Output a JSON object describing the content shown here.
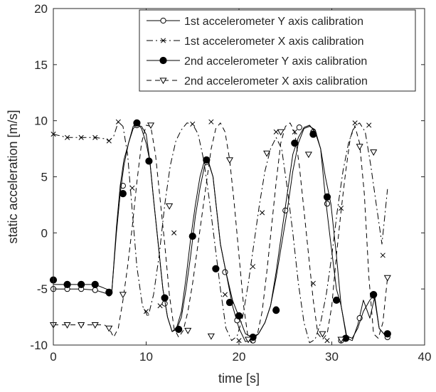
{
  "chart_data": {
    "type": "line",
    "xlabel": "time [s]",
    "ylabel": "static acceleration [m/s]",
    "xlim": [
      0,
      40
    ],
    "ylim": [
      -10,
      20
    ],
    "x_ticks": [
      0,
      10,
      20,
      30,
      40
    ],
    "y_ticks": [
      -10,
      -5,
      0,
      5,
      10,
      15,
      20
    ],
    "grid": false,
    "legend_position": "top-right",
    "series": [
      {
        "name": "1st accelerometer Y axis calibration",
        "line_style": "solid",
        "marker": "open-circle",
        "color": "#000000",
        "x": [
          0,
          1.5,
          3,
          4.5,
          5.7,
          6.3,
          6.8,
          7.2,
          7.6,
          8.1,
          8.6,
          9.0,
          9.5,
          10.0,
          10.4,
          10.8,
          11.3,
          11.8,
          12.3,
          12.8,
          13.3,
          13.8,
          14.3,
          14.8,
          15.3,
          15.8,
          16.3,
          16.7,
          17.2,
          17.6,
          18.0,
          18.6,
          19.3,
          20.0,
          20.7,
          21.4,
          22.1,
          22.8,
          23.4,
          24.0,
          24.6,
          25.2,
          25.8,
          26.4,
          27.0,
          27.6,
          28.2,
          28.8,
          29.3,
          29.9,
          30.5,
          31.0,
          31.6,
          32.2,
          32.8,
          33.4,
          34.1,
          34.6,
          35.1,
          35.6,
          36.2
        ],
        "y": [
          -5.0,
          -5.0,
          -5.0,
          -5.1,
          -5.4,
          -5.3,
          0.5,
          4.2,
          6.5,
          8.0,
          9.3,
          9.6,
          9.5,
          8.8,
          6.4,
          3.0,
          -1.0,
          -5.0,
          -7.5,
          -8.8,
          -8.6,
          -7.5,
          -5.0,
          -2.0,
          1.5,
          4.0,
          6.0,
          6.3,
          5.0,
          2.0,
          -1.0,
          -3.5,
          -6.5,
          -8.5,
          -9.7,
          -9.5,
          -9.0,
          -8.0,
          -6.5,
          -4.0,
          -1.0,
          2.0,
          5.5,
          8.0,
          9.3,
          9.5,
          9.2,
          7.5,
          5.0,
          2.6,
          -2.0,
          -6.5,
          -9.4,
          -9.6,
          -8.2,
          -6.0,
          -7.6,
          -5.8,
          -8.5,
          -9.0,
          -9.2
        ],
        "marker_x": [
          0,
          1.5,
          3,
          4.5,
          6,
          7.5,
          9,
          10.3,
          12,
          13.5,
          16.5,
          18.5,
          19.8,
          21.5,
          24,
          25,
          26.5,
          28,
          29.5,
          31,
          33,
          34.5,
          36
        ],
        "marker_y": [
          -5.0,
          -5.0,
          -5.0,
          -5.1,
          -5.4,
          4.2,
          9.6,
          6.4,
          -6.3,
          -8.6,
          6.3,
          -3.5,
          -7.8,
          -9.6,
          -6.8,
          2.0,
          9.4,
          9.0,
          2.6,
          -9.6,
          -7.6,
          -5.6,
          -9.3
        ]
      },
      {
        "name": "1st accelerometer X axis calibration",
        "line_style": "dash-dot",
        "marker": "x",
        "color": "#000000",
        "x": [
          0,
          1.5,
          3,
          4.5,
          5.5,
          6.0,
          6.5,
          7.0,
          7.5,
          8.0,
          8.5,
          9.0,
          9.6,
          10.2,
          10.8,
          11.4,
          12.0,
          12.6,
          13.2,
          13.8,
          14.4,
          15.0,
          15.6,
          16.2,
          16.8,
          17.4,
          18.0,
          18.6,
          19.2,
          19.8,
          20.4,
          21.0,
          21.6,
          22.2,
          22.8,
          23.4,
          24.0,
          24.6,
          25.2,
          25.8,
          26.4,
          27.0,
          27.6,
          28.2,
          28.8,
          29.4,
          30.0,
          30.6,
          31.2,
          31.8,
          32.4,
          33.0,
          33.6,
          34.2,
          34.8,
          35.4,
          36.0
        ],
        "y": [
          8.8,
          8.5,
          8.5,
          8.5,
          8.4,
          8.2,
          8.6,
          9.9,
          9.5,
          7.0,
          2.0,
          -3.0,
          -6.5,
          -7.5,
          -5.5,
          -2.0,
          2.5,
          6.0,
          8.2,
          9.2,
          9.8,
          9.7,
          8.8,
          6.5,
          3.0,
          -1.0,
          -5.0,
          -8.5,
          -9.6,
          -9.2,
          -7.5,
          -4.5,
          -1.0,
          2.5,
          5.5,
          7.5,
          8.5,
          7.5,
          4.0,
          0.0,
          -4.5,
          -8.0,
          -9.8,
          -9.5,
          -8.0,
          -5.5,
          -2.0,
          2.0,
          5.5,
          8.0,
          9.5,
          9.8,
          9.0,
          6.0,
          2.5,
          -1.0,
          3.9
        ],
        "marker_x": [
          0,
          1.5,
          3,
          4.5,
          6,
          7,
          8.5,
          10,
          11.5,
          13,
          15,
          17,
          18.5,
          20,
          21.5,
          22.5,
          24,
          26,
          28,
          29.5,
          31,
          32.5,
          34,
          35.5
        ],
        "marker_y": [
          8.8,
          8.5,
          8.5,
          8.5,
          8.2,
          9.9,
          4.0,
          -7.0,
          -6.5,
          0.0,
          9.7,
          9.9,
          -5.5,
          -9.6,
          -3.0,
          1.8,
          9.0,
          9.0,
          -4.5,
          -9.6,
          2.2,
          9.8,
          9.6,
          -2.0
        ]
      },
      {
        "name": "2nd accelerometer Y axis calibration",
        "line_style": "solid",
        "marker": "filled-circle",
        "color": "#000000",
        "x": [
          0,
          1.5,
          3,
          4.5,
          5.7,
          6.3,
          6.8,
          7.2,
          7.6,
          8.1,
          8.6,
          9.0,
          9.5,
          10.0,
          10.4,
          10.8,
          11.3,
          11.8,
          12.3,
          12.8,
          13.3,
          13.8,
          14.3,
          14.8,
          15.3,
          15.8,
          16.3,
          16.7,
          17.2,
          17.6,
          18.0,
          18.6,
          19.3,
          20.0,
          20.7,
          21.4,
          22.1,
          22.8,
          23.4,
          24.0,
          24.6,
          25.2,
          25.8,
          26.4,
          27.0,
          27.6,
          28.2,
          28.8,
          29.3,
          29.9,
          30.5,
          31.0,
          31.6,
          32.2,
          32.8,
          33.4,
          34.1,
          34.6,
          35.1,
          35.6,
          36.2
        ],
        "y": [
          -4.6,
          -4.6,
          -4.6,
          -4.6,
          -5.0,
          -5.2,
          0.0,
          3.5,
          6.0,
          8.0,
          9.5,
          9.8,
          9.3,
          8.0,
          6.4,
          3.0,
          -1.0,
          -5.0,
          -7.5,
          -8.8,
          -8.4,
          -7.0,
          -4.0,
          -0.5,
          2.5,
          5.0,
          6.5,
          6.4,
          5.0,
          2.0,
          -1.0,
          -3.5,
          -6.0,
          -7.5,
          -9.0,
          -9.3,
          -9.0,
          -8.0,
          -6.5,
          -3.5,
          0.0,
          3.5,
          7.0,
          8.5,
          9.4,
          9.6,
          9.0,
          7.5,
          3.2,
          -1.0,
          -5.0,
          -6.5,
          -9.2,
          -9.4,
          -8.5,
          -7.0,
          -6.0,
          -5.5,
          -8.5,
          -9.0,
          -9.0
        ],
        "marker_x": [
          0,
          1.5,
          3,
          4.5,
          6,
          7.5,
          9,
          10.3,
          12,
          13.5,
          15,
          16.5,
          17.5,
          19,
          20,
          21.5,
          24,
          26,
          28,
          29.5,
          30.5,
          31.5,
          34.5,
          36
        ],
        "marker_y": [
          -4.2,
          -4.6,
          -4.6,
          -4.6,
          -5.3,
          3.5,
          9.8,
          6.4,
          -5.8,
          -8.6,
          -0.3,
          6.5,
          -3.2,
          -6.2,
          -7.4,
          -9.3,
          -6.9,
          8.0,
          8.8,
          3.2,
          -6.0,
          -9.4,
          -5.5,
          -9.0
        ]
      },
      {
        "name": "2nd accelerometer X axis calibration",
        "line_style": "dashed",
        "marker": "open-triangle-down",
        "color": "#000000",
        "x": [
          0,
          1.5,
          3,
          4.5,
          5.5,
          6.0,
          6.5,
          7.0,
          7.5,
          8.0,
          8.5,
          9.0,
          9.5,
          10.0,
          10.5,
          11.0,
          11.5,
          12.0,
          12.5,
          13.0,
          13.5,
          14.0,
          14.5,
          15.0,
          15.5,
          16.0,
          16.5,
          17.0,
          17.5,
          18.0,
          18.5,
          19.0,
          19.5,
          20.0,
          20.5,
          21.0,
          21.5,
          22.0,
          22.5,
          23.0,
          23.5,
          24.0,
          24.5,
          25.0,
          25.5,
          26.0,
          26.5,
          27.0,
          27.5,
          28.0,
          28.5,
          29.0,
          29.5,
          30.0,
          30.5,
          31.0,
          31.5,
          32.0,
          32.5,
          33.0,
          33.5,
          34.0,
          34.5,
          35.0,
          35.5,
          36.0
        ],
        "y": [
          -8.2,
          -8.2,
          -8.2,
          -8.2,
          -8.2,
          -8.5,
          -9.3,
          -8.5,
          -6.0,
          -3.0,
          0.5,
          4.5,
          8.0,
          9.6,
          9.5,
          7.0,
          3.0,
          -1.0,
          -5.5,
          -8.5,
          -9.3,
          -8.7,
          -7.0,
          -4.5,
          -1.5,
          1.5,
          4.5,
          7.5,
          9.3,
          9.8,
          9.0,
          6.5,
          2.5,
          -2.0,
          -6.5,
          -9.5,
          -9.8,
          -9.0,
          -7.0,
          -3.5,
          0.5,
          4.5,
          8.0,
          9.5,
          9.8,
          9.0,
          6.0,
          2.0,
          -2.0,
          -6.0,
          -9.0,
          -9.5,
          -9.0,
          -6.5,
          -2.0,
          2.0,
          5.5,
          8.5,
          9.5,
          8.0,
          3.5,
          -4.0,
          -9.0,
          -9.4,
          -8.0,
          -4.0
        ],
        "marker_x": [
          0,
          1.5,
          3,
          4.5,
          6,
          7.5,
          10.5,
          12.5,
          14.5,
          17,
          19,
          21,
          23,
          24.5,
          27.5,
          29,
          31,
          33,
          34.5,
          36
        ],
        "marker_y": [
          -8.2,
          -8.2,
          -8.2,
          -8.2,
          -8.5,
          -5.5,
          9.6,
          2.4,
          -8.7,
          -9.2,
          6.5,
          -9.5,
          7.1,
          9.0,
          7.0,
          -9.0,
          -9.5,
          7.7,
          7.2,
          -4.0
        ]
      }
    ]
  }
}
